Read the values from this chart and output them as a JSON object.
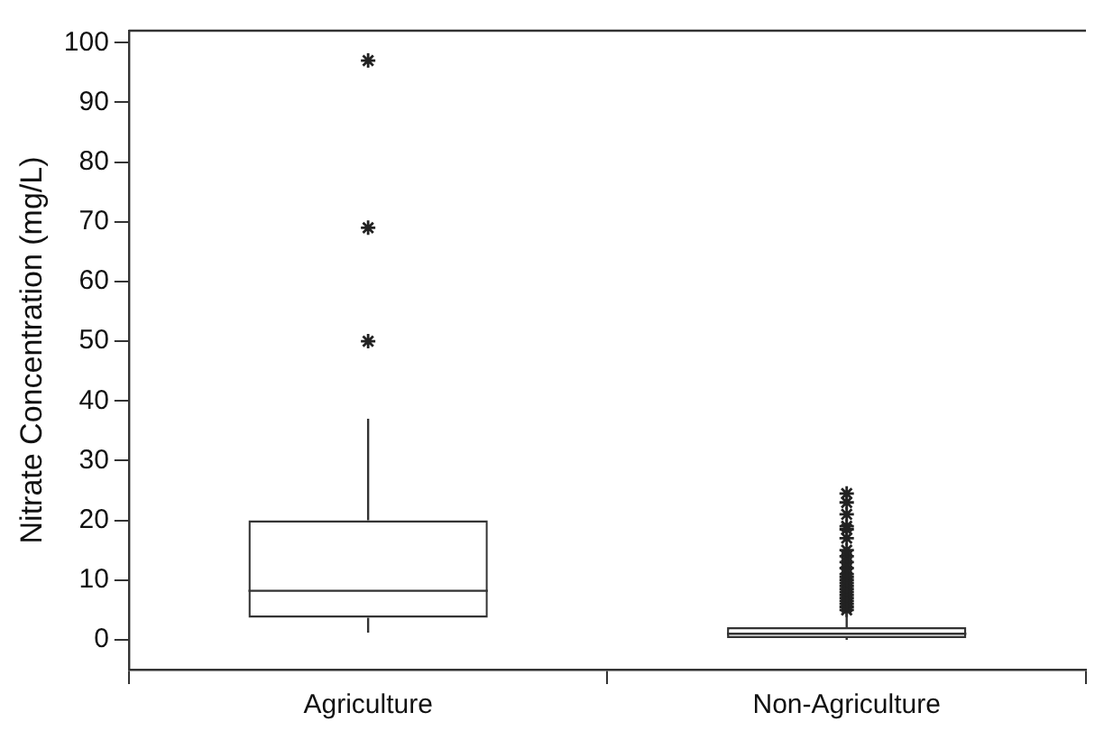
{
  "chart_data": {
    "type": "box",
    "ylabel": "Nitrate Concentration (mg/L)",
    "categories": [
      "Agriculture",
      "Non-Agriculture"
    ],
    "boxes": [
      {
        "low": 1.2,
        "q1": 3.7,
        "median": 8.2,
        "q3": 20,
        "high": 37,
        "outliers": [
          50,
          69,
          97
        ]
      },
      {
        "low": 0,
        "q1": 0.3,
        "median": 1,
        "q3": 2.1,
        "high": 4.5,
        "outliers": [
          5,
          5.5,
          6,
          6.5,
          7,
          7.5,
          8,
          8.5,
          9,
          9.5,
          10,
          10.5,
          11,
          12,
          13,
          14,
          15,
          17,
          18.5,
          19,
          21,
          23,
          24.5
        ]
      }
    ],
    "ylim": [
      -5,
      102
    ],
    "yticks": [
      0,
      10,
      20,
      30,
      40,
      50,
      60,
      70,
      80,
      90,
      100
    ],
    "grid": false,
    "marker": "star"
  }
}
